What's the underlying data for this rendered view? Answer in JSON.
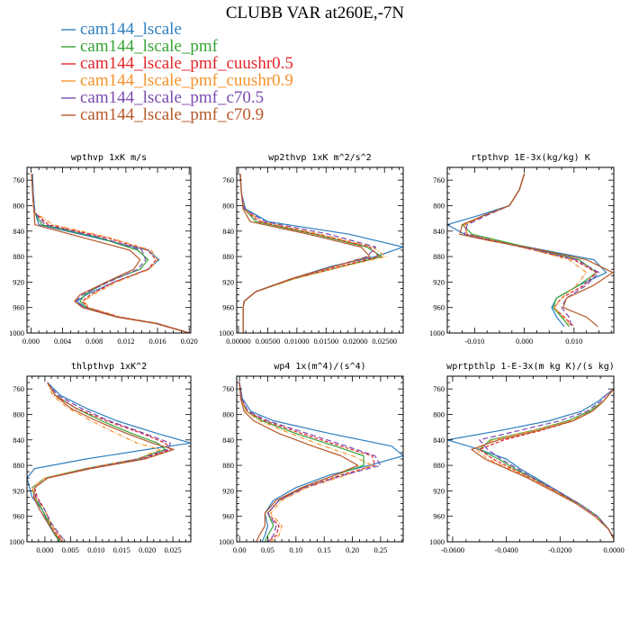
{
  "chart_data": {
    "title": "CLUBB VAR at260E,-7N",
    "legend": [
      {
        "name": "cam144_lscale",
        "color": "#2f7fbf",
        "dash": ""
      },
      {
        "name": "cam144_lscale_pmf",
        "color": "#36a336",
        "dash": ""
      },
      {
        "name": "cam144_lscale_pmf_cuushr0.5",
        "color": "#e3262a",
        "dash": "4,2"
      },
      {
        "name": "cam144_lscale_pmf_cuushr0.9",
        "color": "#f7922a",
        "dash": "5,2,1,2"
      },
      {
        "name": "cam144_lscale_pmf_c70.5",
        "color": "#7b4ab0",
        "dash": "6,3"
      },
      {
        "name": "cam144_lscale_pmf_c70.9",
        "color": "#b5582a",
        "dash": ""
      }
    ],
    "panels": [
      {
        "type": "line",
        "title": "wpthvp  1xK m/s",
        "xlim": [
          -0.0005,
          0.0202
        ],
        "xticks": [
          0.0,
          0.004,
          0.008,
          0.012,
          0.016,
          0.02
        ],
        "xticklabels": [
          "0.000",
          "0.004",
          "0.008",
          "0.012",
          "0.016",
          "0.020"
        ],
        "ylim": [
          740,
          1000
        ],
        "yticks": [
          760,
          800,
          840,
          880,
          920,
          960,
          1000
        ],
        "levels": [
          750,
          780,
          810,
          830,
          850,
          870,
          885,
          900,
          920,
          940,
          950,
          960,
          975,
          985,
          1000
        ],
        "series": [
          [
            0.0002,
            0.0003,
            0.0005,
            0.001,
            0.008,
            0.0148,
            0.0162,
            0.0148,
            0.0105,
            0.007,
            0.0058,
            0.0068,
            0.011,
            0.016,
            0.02
          ],
          [
            0.0001,
            0.0002,
            0.0004,
            0.0014,
            0.0085,
            0.0135,
            0.0148,
            0.0138,
            0.0095,
            0.0068,
            0.0062,
            0.007,
            0.011,
            0.0158,
            0.02
          ],
          [
            0.0001,
            0.0002,
            0.0004,
            0.0022,
            0.0095,
            0.0148,
            0.0158,
            0.0148,
            0.0105,
            0.0075,
            0.0065,
            0.0072,
            0.0113,
            0.016,
            0.02
          ],
          [
            0.0001,
            0.0002,
            0.0004,
            0.0028,
            0.0098,
            0.0152,
            0.016,
            0.015,
            0.0108,
            0.0078,
            0.0067,
            0.0073,
            0.0113,
            0.016,
            0.02
          ],
          [
            0.0001,
            0.0002,
            0.0004,
            0.0018,
            0.0088,
            0.014,
            0.0145,
            0.0135,
            0.0098,
            0.0065,
            0.0057,
            0.0067,
            0.011,
            0.0158,
            0.02
          ],
          [
            0.0001,
            0.0002,
            0.0004,
            0.0005,
            0.0065,
            0.0125,
            0.0138,
            0.013,
            0.0095,
            0.0062,
            0.0055,
            0.0065,
            0.0108,
            0.0157,
            0.02
          ]
        ]
      },
      {
        "type": "line",
        "title": "wp2thvp  1xK m^2/s^2",
        "xlim": [
          -0.0003,
          0.0282
        ],
        "xticks": [
          0.0,
          0.005,
          0.01,
          0.015,
          0.02,
          0.025
        ],
        "xticklabels": [
          "0.00000",
          "0.00500",
          "0.01000",
          "0.01500",
          "0.02000",
          "0.02500"
        ],
        "ylim": [
          740,
          1000
        ],
        "yticks": [
          760,
          800,
          840,
          880,
          920,
          960,
          1000
        ],
        "levels": [
          750,
          780,
          805,
          825,
          845,
          865,
          880,
          895,
          915,
          935,
          950,
          960,
          975,
          1000
        ],
        "series": [
          [
            0.0003,
            0.0005,
            0.0012,
            0.005,
            0.019,
            0.0282,
            0.0235,
            0.016,
            0.009,
            0.003,
            0.001,
            0.0008,
            0.0008,
            0.0008
          ],
          [
            0.0003,
            0.0005,
            0.001,
            0.003,
            0.013,
            0.022,
            0.0245,
            0.018,
            0.0095,
            0.003,
            0.001,
            0.0008,
            0.0008,
            0.0008
          ],
          [
            0.0003,
            0.0005,
            0.001,
            0.0035,
            0.0135,
            0.0225,
            0.024,
            0.0175,
            0.0093,
            0.003,
            0.001,
            0.0008,
            0.0008,
            0.0008
          ],
          [
            0.0003,
            0.0005,
            0.001,
            0.004,
            0.014,
            0.023,
            0.0252,
            0.0182,
            0.0095,
            0.003,
            0.001,
            0.0008,
            0.0008,
            0.0008
          ],
          [
            0.0003,
            0.0005,
            0.001,
            0.0045,
            0.0155,
            0.0235,
            0.022,
            0.0165,
            0.009,
            0.003,
            0.001,
            0.0008,
            0.0008,
            0.0008
          ],
          [
            0.0003,
            0.0005,
            0.0008,
            0.002,
            0.012,
            0.021,
            0.0225,
            0.0165,
            0.009,
            0.003,
            0.001,
            0.0008,
            0.0008,
            0.0008
          ]
        ]
      },
      {
        "type": "line",
        "title": "rtpthvp  1E-3x(kg/kg) K",
        "xlim": [
          -0.0155,
          0.018
        ],
        "xticks": [
          -0.01,
          0.0,
          0.01
        ],
        "xticklabels": [
          "-0.010",
          "0.000",
          "0.010"
        ],
        "ylim": [
          740,
          1000
        ],
        "yticks": [
          760,
          800,
          840,
          880,
          920,
          960,
          1000
        ],
        "levels": [
          750,
          775,
          800,
          815,
          830,
          845,
          855,
          870,
          885,
          905,
          925,
          945,
          960,
          975,
          990
        ],
        "series": [
          [
            0.0,
            -0.001,
            -0.003,
            -0.009,
            -0.0155,
            -0.012,
            -0.006,
            0.004,
            0.014,
            0.0165,
            0.011,
            0.0065,
            0.0055,
            0.0065,
            0.008
          ],
          [
            0.0,
            -0.001,
            -0.003,
            -0.008,
            -0.0125,
            -0.0105,
            -0.005,
            0.003,
            0.011,
            0.0145,
            0.011,
            0.0065,
            0.0058,
            0.0075,
            0.009
          ],
          [
            0.0,
            -0.001,
            -0.003,
            -0.008,
            -0.012,
            -0.0115,
            -0.006,
            0.002,
            0.01,
            0.0145,
            0.012,
            0.0075,
            0.006,
            0.008,
            0.01
          ],
          [
            0.0,
            -0.001,
            -0.003,
            -0.008,
            -0.012,
            -0.0115,
            -0.006,
            0.002,
            0.009,
            0.0125,
            0.0105,
            0.0075,
            0.006,
            0.0078,
            0.0095
          ],
          [
            0.0,
            -0.001,
            -0.003,
            -0.0075,
            -0.0115,
            -0.012,
            -0.0065,
            0.0025,
            0.0105,
            0.015,
            0.0125,
            0.0085,
            0.0075,
            0.009,
            0.0095
          ],
          [
            0.0,
            -0.001,
            -0.003,
            -0.008,
            -0.0125,
            -0.013,
            -0.007,
            0.0035,
            0.0125,
            0.0178,
            0.014,
            0.0085,
            0.0078,
            0.0125,
            0.0148
          ]
        ]
      },
      {
        "type": "line",
        "title": "thlpthvp  1xK^2",
        "xlim": [
          -0.0035,
          0.0285
        ],
        "xticks": [
          0.0,
          0.005,
          0.01,
          0.015,
          0.02,
          0.025
        ],
        "xticklabels": [
          "0.000",
          "0.005",
          "0.010",
          "0.015",
          "0.020",
          "0.025"
        ],
        "ylim": [
          740,
          1000
        ],
        "yticks": [
          760,
          800,
          840,
          880,
          920,
          960,
          1000
        ],
        "levels": [
          750,
          770,
          790,
          810,
          830,
          845,
          855,
          870,
          885,
          900,
          915,
          930,
          950,
          970,
          990,
          1000
        ],
        "series": [
          [
            0.0005,
            0.003,
            0.008,
            0.014,
            0.022,
            0.0285,
            0.02,
            0.008,
            -0.002,
            -0.0035,
            -0.003,
            -0.0025,
            -0.0005,
            0.0005,
            0.002,
            0.003
          ],
          [
            0.0005,
            0.002,
            0.006,
            0.011,
            0.017,
            0.022,
            0.0235,
            0.018,
            0.008,
            0.0,
            -0.0025,
            -0.002,
            -0.0005,
            0.0008,
            0.002,
            0.003
          ],
          [
            0.0005,
            0.002,
            0.006,
            0.012,
            0.019,
            0.0235,
            0.0245,
            0.019,
            0.009,
            0.0005,
            -0.002,
            -0.0015,
            0.0,
            0.001,
            0.0025,
            0.0035
          ],
          [
            0.0005,
            0.0015,
            0.0045,
            0.009,
            0.014,
            0.018,
            0.0225,
            0.018,
            0.008,
            0.0,
            -0.0025,
            -0.002,
            0.0,
            0.001,
            0.0028,
            0.0038
          ],
          [
            0.0005,
            0.0025,
            0.007,
            0.0125,
            0.0195,
            0.0245,
            0.024,
            0.0185,
            0.0085,
            0.0005,
            -0.002,
            -0.0018,
            0.0,
            0.0012,
            0.003,
            0.004
          ],
          [
            0.0005,
            0.002,
            0.005,
            0.01,
            0.016,
            0.021,
            0.0252,
            0.0195,
            0.009,
            0.0005,
            -0.002,
            -0.0022,
            -0.001,
            0.0005,
            0.0022,
            0.0035
          ]
        ]
      },
      {
        "type": "line",
        "title": "wp4  1x(m^4)/(s^4)",
        "xlim": [
          -0.005,
          0.29
        ],
        "xticks": [
          0.0,
          0.05,
          0.1,
          0.15,
          0.2,
          0.25
        ],
        "xticklabels": [
          "0.00",
          "0.05",
          "0.10",
          "0.15",
          "0.20",
          "0.25"
        ],
        "ylim": [
          740,
          1000
        ],
        "yticks": [
          760,
          800,
          840,
          880,
          920,
          960,
          1000
        ],
        "levels": [
          750,
          775,
          795,
          810,
          830,
          850,
          865,
          880,
          895,
          915,
          935,
          955,
          975,
          990,
          1000
        ],
        "series": [
          [
            0.0,
            0.005,
            0.02,
            0.06,
            0.16,
            0.27,
            0.29,
            0.23,
            0.16,
            0.1,
            0.06,
            0.045,
            0.05,
            0.045,
            0.04
          ],
          [
            0.0,
            0.003,
            0.012,
            0.04,
            0.1,
            0.17,
            0.22,
            0.22,
            0.17,
            0.11,
            0.07,
            0.05,
            0.06,
            0.05,
            0.045
          ],
          [
            0.0,
            0.003,
            0.013,
            0.045,
            0.11,
            0.18,
            0.235,
            0.24,
            0.18,
            0.115,
            0.07,
            0.05,
            0.07,
            0.065,
            0.05
          ],
          [
            0.0,
            0.003,
            0.012,
            0.035,
            0.09,
            0.15,
            0.2,
            0.235,
            0.19,
            0.12,
            0.075,
            0.055,
            0.075,
            0.07,
            0.055
          ],
          [
            0.0,
            0.004,
            0.015,
            0.05,
            0.12,
            0.19,
            0.24,
            0.25,
            0.185,
            0.115,
            0.07,
            0.05,
            0.065,
            0.06,
            0.05
          ],
          [
            0.0,
            0.002,
            0.008,
            0.025,
            0.07,
            0.13,
            0.18,
            0.21,
            0.17,
            0.11,
            0.065,
            0.045,
            0.045,
            0.035,
            0.03
          ]
        ]
      },
      {
        "type": "line",
        "title": "wprtpthlp  1-E-3x(m kg K)/(s kg)",
        "xlim": [
          -0.062,
          0.0
        ],
        "xticks": [
          -0.06,
          -0.04,
          -0.02,
          0.0
        ],
        "xticklabels": [
          "-0.0600",
          "-0.0400",
          "-0.0200",
          "0.0000"
        ],
        "ylim": [
          740,
          1000
        ],
        "yticks": [
          760,
          800,
          840,
          880,
          920,
          960,
          1000
        ],
        "levels": [
          760,
          770,
          780,
          795,
          810,
          825,
          840,
          855,
          870,
          885,
          900,
          920,
          940,
          960,
          980,
          995
        ],
        "series": [
          [
            0.0,
            -0.003,
            -0.006,
            -0.012,
            -0.024,
            -0.042,
            -0.062,
            -0.05,
            -0.04,
            -0.035,
            -0.029,
            -0.021,
            -0.013,
            -0.006,
            -0.002,
            0.0
          ],
          [
            0.0,
            -0.002,
            -0.004,
            -0.009,
            -0.017,
            -0.03,
            -0.046,
            -0.05,
            -0.043,
            -0.037,
            -0.03,
            -0.022,
            -0.013,
            -0.006,
            -0.002,
            0.0
          ],
          [
            0.0,
            -0.002,
            -0.004,
            -0.008,
            -0.015,
            -0.027,
            -0.041,
            -0.05,
            -0.045,
            -0.038,
            -0.031,
            -0.022,
            -0.014,
            -0.007,
            -0.002,
            0.0
          ],
          [
            0.0,
            -0.002,
            -0.004,
            -0.008,
            -0.016,
            -0.03,
            -0.045,
            -0.051,
            -0.047,
            -0.039,
            -0.031,
            -0.022,
            -0.014,
            -0.007,
            -0.002,
            0.0
          ],
          [
            0.0,
            -0.003,
            -0.005,
            -0.01,
            -0.02,
            -0.035,
            -0.05,
            -0.047,
            -0.042,
            -0.036,
            -0.03,
            -0.021,
            -0.013,
            -0.006,
            -0.002,
            0.0
          ],
          [
            0.0,
            -0.002,
            -0.004,
            -0.008,
            -0.015,
            -0.028,
            -0.043,
            -0.053,
            -0.048,
            -0.04,
            -0.032,
            -0.023,
            -0.014,
            -0.007,
            -0.002,
            0.0
          ]
        ]
      }
    ]
  }
}
